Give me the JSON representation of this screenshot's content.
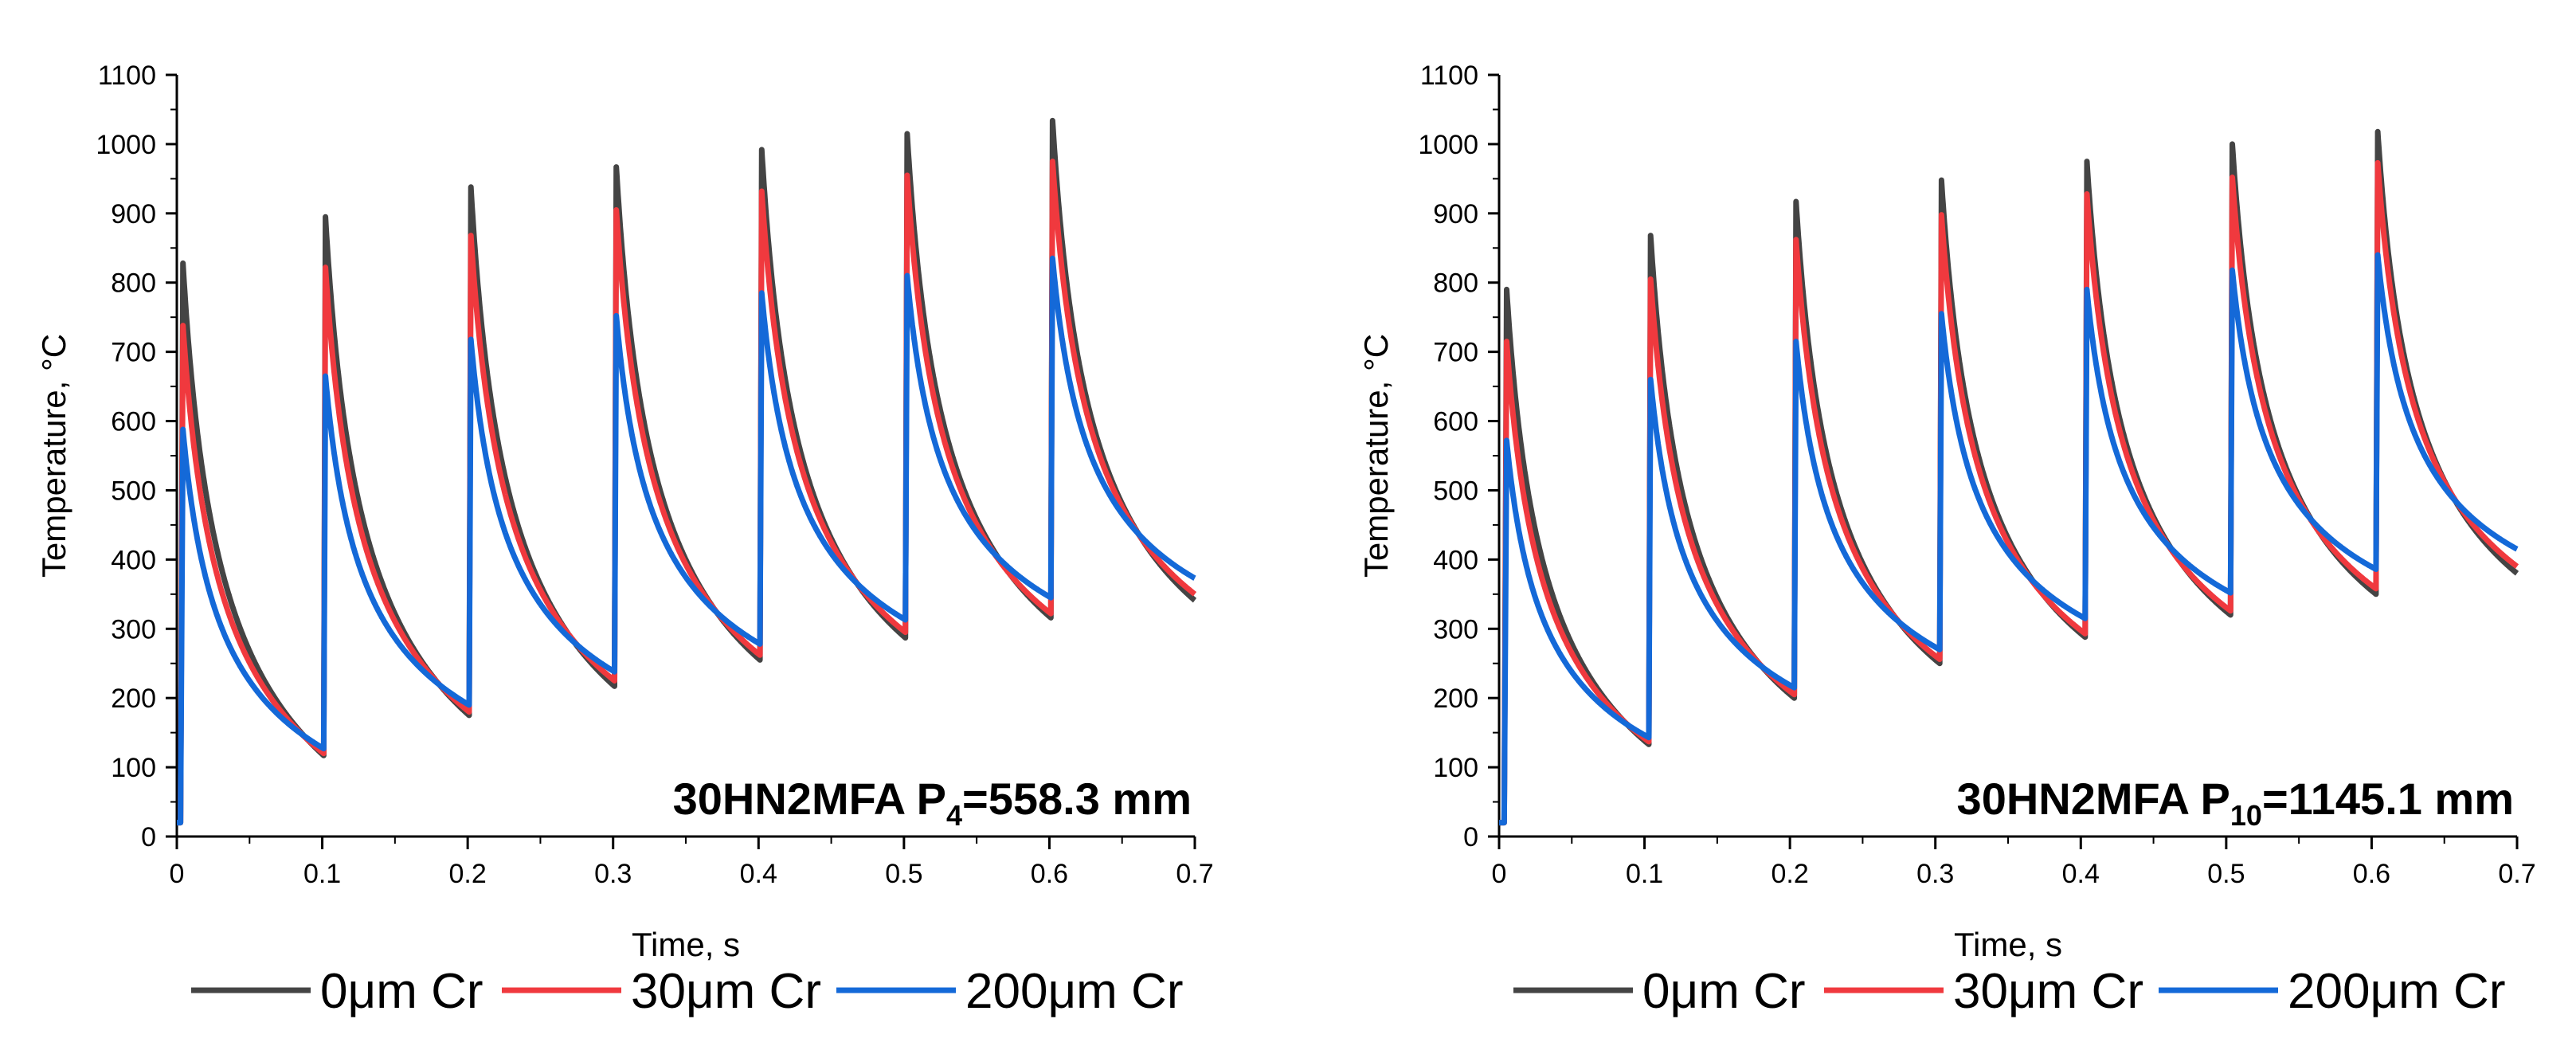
{
  "chart_data": [
    {
      "type": "line",
      "xlabel": "Time, s",
      "ylabel": "Temperature, °C",
      "xlim": [
        0,
        0.7
      ],
      "ylim": [
        0,
        1100
      ],
      "x_ticks": [
        "0",
        "0.1",
        "0.2",
        "0.3",
        "0.4",
        "0.5",
        "0.6",
        "0.7"
      ],
      "y_ticks": [
        "0",
        "100",
        "200",
        "300",
        "400",
        "500",
        "600",
        "700",
        "800",
        "900",
        "1000",
        "1100"
      ],
      "annotation": {
        "prefix": "30HN2MFA P",
        "sub": "4",
        "suffix": "=558.3 mm"
      },
      "legend": [
        "0μm Cr",
        "30μm Cr",
        "200μm Cr"
      ],
      "pulse_times": [
        0.003,
        0.101,
        0.201,
        0.301,
        0.401,
        0.501,
        0.601
      ],
      "series": [
        {
          "name": "0μm Cr",
          "color": "#444444",
          "start_value": 20,
          "peaks": [
            828,
            895,
            938,
            967,
            992,
            1015,
            1034
          ],
          "valleys": [
            117,
            175,
            217,
            255,
            287,
            316
          ],
          "end_value": 341
        },
        {
          "name": "30μm Cr",
          "color": "#f0393e",
          "start_value": 20,
          "peaks": [
            738,
            822,
            868,
            905,
            932,
            955,
            975
          ],
          "valleys": [
            120,
            180,
            225,
            262,
            295,
            322
          ],
          "end_value": 350
        },
        {
          "name": "200μm Cr",
          "color": "#1469d8",
          "start_value": 20,
          "peaks": [
            588,
            665,
            718,
            752,
            785,
            810,
            835
          ],
          "valleys": [
            127,
            190,
            238,
            278,
            313,
            345
          ],
          "end_value": 373
        }
      ]
    },
    {
      "type": "line",
      "xlabel": "Time, s",
      "ylabel": "Temperature, °C",
      "xlim": [
        0,
        0.7
      ],
      "ylim": [
        0,
        1100
      ],
      "x_ticks": [
        "0",
        "0.1",
        "0.2",
        "0.3",
        "0.4",
        "0.5",
        "0.6",
        "0.7"
      ],
      "y_ticks": [
        "0",
        "100",
        "200",
        "300",
        "400",
        "500",
        "600",
        "700",
        "800",
        "900",
        "1000",
        "1100"
      ],
      "annotation": {
        "prefix": "30HN2MFA P",
        "sub": "10",
        "suffix": "=1145.1 mm"
      },
      "legend": [
        "0μm Cr",
        "30μm Cr",
        "200μm Cr"
      ],
      "pulse_times": [
        0.004,
        0.103,
        0.203,
        0.303,
        0.403,
        0.503,
        0.603
      ],
      "series": [
        {
          "name": "0μm Cr",
          "color": "#444444",
          "start_value": 20,
          "peaks": [
            790,
            868,
            917,
            948,
            975,
            1000,
            1018
          ],
          "valleys": [
            133,
            200,
            250,
            288,
            320,
            350
          ],
          "end_value": 380
        },
        {
          "name": "30μm Cr",
          "color": "#f0393e",
          "start_value": 20,
          "peaks": [
            715,
            805,
            862,
            898,
            928,
            952,
            973
          ],
          "valleys": [
            137,
            205,
            256,
            293,
            326,
            358
          ],
          "end_value": 390
        },
        {
          "name": "200μm Cr",
          "color": "#1469d8",
          "start_value": 20,
          "peaks": [
            572,
            660,
            715,
            755,
            790,
            818,
            840
          ],
          "valleys": [
            143,
            215,
            270,
            315,
            352,
            386
          ],
          "end_value": 415
        }
      ]
    }
  ]
}
